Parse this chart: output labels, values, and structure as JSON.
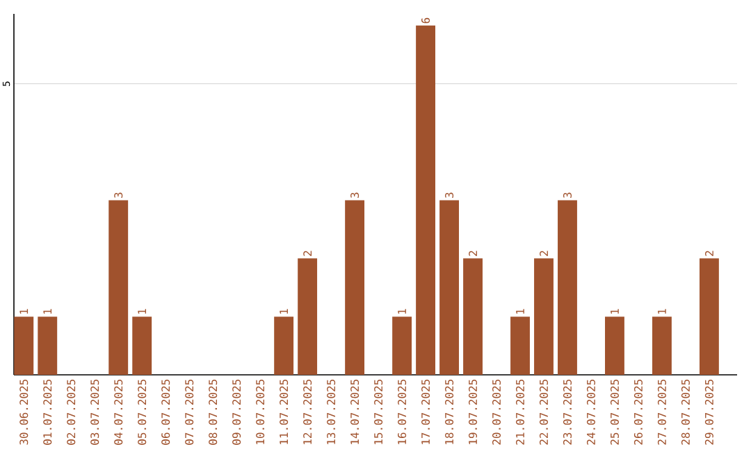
{
  "chart_data": {
    "type": "bar",
    "categories": [
      "30.06.2025",
      "01.07.2025",
      "02.07.2025",
      "03.07.2025",
      "04.07.2025",
      "05.07.2025",
      "06.07.2025",
      "07.07.2025",
      "08.07.2025",
      "09.07.2025",
      "10.07.2025",
      "11.07.2025",
      "12.07.2025",
      "13.07.2025",
      "14.07.2025",
      "15.07.2025",
      "16.07.2025",
      "17.07.2025",
      "18.07.2025",
      "19.07.2025",
      "20.07.2025",
      "21.07.2025",
      "22.07.2025",
      "23.07.2025",
      "24.07.2025",
      "25.07.2025",
      "26.07.2025",
      "27.07.2025",
      "28.07.2025",
      "29.07.2025"
    ],
    "values": [
      1,
      1,
      0,
      0,
      3,
      1,
      0,
      0,
      0,
      0,
      0,
      1,
      2,
      0,
      3,
      0,
      1,
      6,
      3,
      2,
      0,
      1,
      2,
      3,
      0,
      1,
      0,
      1,
      0,
      2
    ],
    "value_labels": [
      "1",
      "1",
      null,
      null,
      "3",
      "1",
      null,
      null,
      null,
      null,
      null,
      "1",
      "2",
      null,
      "3",
      null,
      "1",
      "6",
      "3",
      "2",
      null,
      "1",
      "2",
      "3",
      null,
      "1",
      null,
      "1",
      null,
      "2"
    ],
    "color": "#a0522d",
    "ylim": [
      0,
      6.2
    ],
    "yticks": [
      5
    ],
    "grid": "y"
  }
}
